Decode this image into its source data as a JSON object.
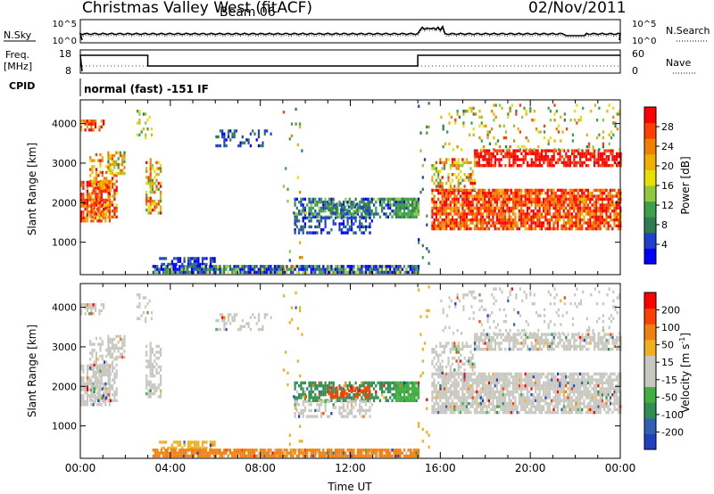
{
  "header": {
    "station": "Christmas Valley West (fitACF)",
    "beam": "Beam 06",
    "date": "02/Nov/2011"
  },
  "summary_panels": {
    "nsky_label": "N.Sky",
    "nsky_ticks": [
      "10^5",
      "10^0"
    ],
    "nsearch_label": "N.Search",
    "nsearch_ticks": [
      "10^5",
      "10^0"
    ],
    "freq_label": "Freq.",
    "freq_unit": "[MHz]",
    "freq_ticks": [
      "18",
      "8"
    ],
    "nave_label": "Nave",
    "nave_ticks": [
      "60",
      "0"
    ],
    "cpid_label": "CPID",
    "cpid_value": "normal (fast) -151 IF"
  },
  "colors": {
    "power": [
      "#0000ff",
      "#2040d0",
      "#2e7d4f",
      "#3ea04a",
      "#90c840",
      "#e8e000",
      "#f0b000",
      "#f08000",
      "#ff4000",
      "#ff0000"
    ],
    "velocity": [
      "#2040c0",
      "#3060b0",
      "#2f8f50",
      "#40b040",
      "#c8c8c0",
      "#c8c8c0",
      "#f0b020",
      "#f08010",
      "#ff4000",
      "#ff0000"
    ]
  },
  "chart_data": [
    {
      "type": "heatmap",
      "name": "power",
      "ylabel": "Slant Range [km]",
      "xlim": [
        0,
        24
      ],
      "ylim": [
        180,
        4600
      ],
      "yticks": [
        "1000",
        "2000",
        "3000",
        "4000"
      ],
      "colorbar_label": "Power [dB]",
      "colorbar_ticks": [
        "4",
        "8",
        "12",
        "16",
        "20",
        "24",
        "28"
      ],
      "colorbar_range": [
        0,
        32
      ]
    },
    {
      "type": "heatmap",
      "name": "velocity",
      "ylabel": "Slant Range [km]",
      "xlabel": "Time UT",
      "xticks": [
        "00:00",
        "04:00",
        "08:00",
        "12:00",
        "16:00",
        "20:00",
        "00:00"
      ],
      "xlim": [
        0,
        24
      ],
      "ylim": [
        180,
        4600
      ],
      "yticks": [
        "1000",
        "2000",
        "3000",
        "4000"
      ],
      "colorbar_label": "Velocity [m s",
      "colorbar_unit_sup": "-1",
      "colorbar_ticks": [
        "200",
        "100",
        "50",
        "15",
        "-15",
        "-50",
        "-100",
        "-200"
      ]
    }
  ]
}
